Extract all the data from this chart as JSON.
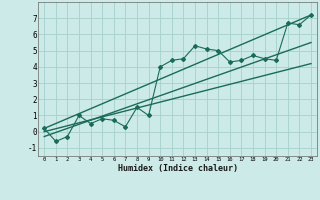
{
  "xlabel": "Humidex (Indice chaleur)",
  "bg_color": "#cceae7",
  "grid_color": "#aad4d0",
  "line_color": "#1a6b5a",
  "xlim": [
    -0.5,
    23.5
  ],
  "ylim": [
    -1.5,
    8.0
  ],
  "yticks": [
    -1,
    0,
    1,
    2,
    3,
    4,
    5,
    6,
    7
  ],
  "xticks": [
    0,
    1,
    2,
    3,
    4,
    5,
    6,
    7,
    8,
    9,
    10,
    11,
    12,
    13,
    14,
    15,
    16,
    17,
    18,
    19,
    20,
    21,
    22,
    23
  ],
  "scatter_x": [
    0,
    1,
    2,
    3,
    4,
    5,
    6,
    7,
    8,
    9,
    10,
    11,
    12,
    13,
    14,
    15,
    16,
    17,
    18,
    19,
    20,
    21,
    22,
    23
  ],
  "scatter_y": [
    0.2,
    -0.6,
    -0.3,
    1.0,
    0.5,
    0.8,
    0.7,
    0.3,
    1.5,
    1.0,
    4.0,
    4.4,
    4.5,
    5.3,
    5.1,
    5.0,
    4.3,
    4.4,
    4.7,
    4.5,
    4.4,
    6.7,
    6.6,
    7.2
  ],
  "line1_x": [
    0,
    23
  ],
  "line1_y": [
    0.2,
    7.2
  ],
  "line2_x": [
    0,
    23
  ],
  "line2_y": [
    -0.3,
    5.5
  ],
  "line3_x": [
    0,
    23
  ],
  "line3_y": [
    0.0,
    4.2
  ]
}
